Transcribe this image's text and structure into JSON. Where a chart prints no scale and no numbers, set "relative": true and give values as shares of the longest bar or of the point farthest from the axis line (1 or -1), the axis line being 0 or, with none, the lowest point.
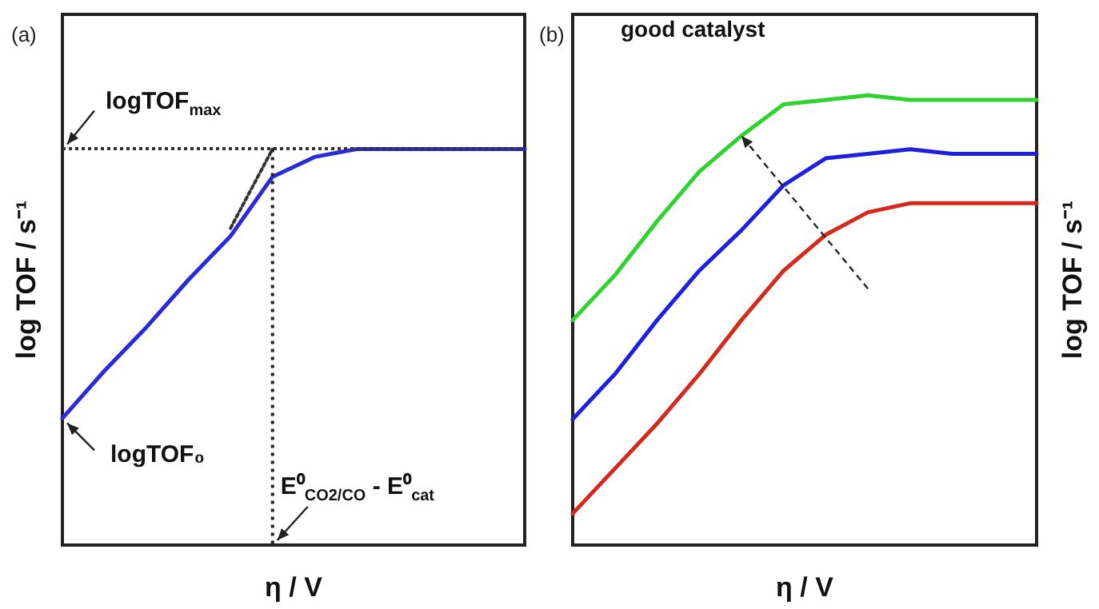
{
  "chart_data": [
    {
      "type": "line",
      "title": "(a)",
      "xlabel": "η / V",
      "ylabel": "log TOF / s⁻¹",
      "relative": true,
      "categories": [
        null,
        null,
        null,
        null,
        null,
        null,
        null,
        null,
        null,
        null,
        null,
        null
      ],
      "series": [
        {
          "color": "#2a2ad8",
          "values": [
            0.32,
            0.44,
            0.55,
            0.67,
            0.78,
            0.93,
            0.98,
            1,
            1,
            1,
            1,
            1
          ]
        },
        {
          "color": "#333333",
          "line_style": "dotted",
          "values": [
            null,
            null,
            null,
            null,
            0.8,
            1,
            null,
            null,
            null,
            null,
            null,
            null
          ]
        }
      ],
      "ref_lines": [
        {
          "axis": "y",
          "value": 1,
          "color": "#333333",
          "line_style": "dotted"
        }
      ],
      "annotations": [
        {
          "text": "logTOF$_{max}$",
          "y": 1
        },
        "logTOF₀",
        "E⁰$_{CO2/CO}$ - E⁰$_{cat}$"
      ]
    },
    {
      "type": "line",
      "title": "(b)",
      "xlabel": "η / V",
      "ylabel": "log TOF / s⁻¹",
      "relative": true,
      "categories": [
        null,
        null,
        null,
        null,
        null,
        null,
        null,
        null,
        null,
        null,
        null,
        null
      ],
      "series": [
        {
          "color": "#2fd22f",
          "values": [
            0.5,
            0.6,
            0.72,
            0.83,
            0.91,
            0.98,
            0.99,
            1,
            0.99,
            0.99,
            0.99,
            0.99
          ]
        },
        {
          "color": "#1f1fe0",
          "values": [
            0.28,
            0.38,
            0.5,
            0.61,
            0.7,
            0.8,
            0.86,
            0.87,
            0.88,
            0.87,
            0.87,
            0.87
          ]
        },
        {
          "color": "#d42a1e",
          "values": [
            0.07,
            0.17,
            0.27,
            0.38,
            0.5,
            0.61,
            0.69,
            0.74,
            0.76,
            0.76,
            0.76,
            0.76
          ]
        }
      ],
      "annotations": [
        "good catalyst"
      ]
    }
  ]
}
